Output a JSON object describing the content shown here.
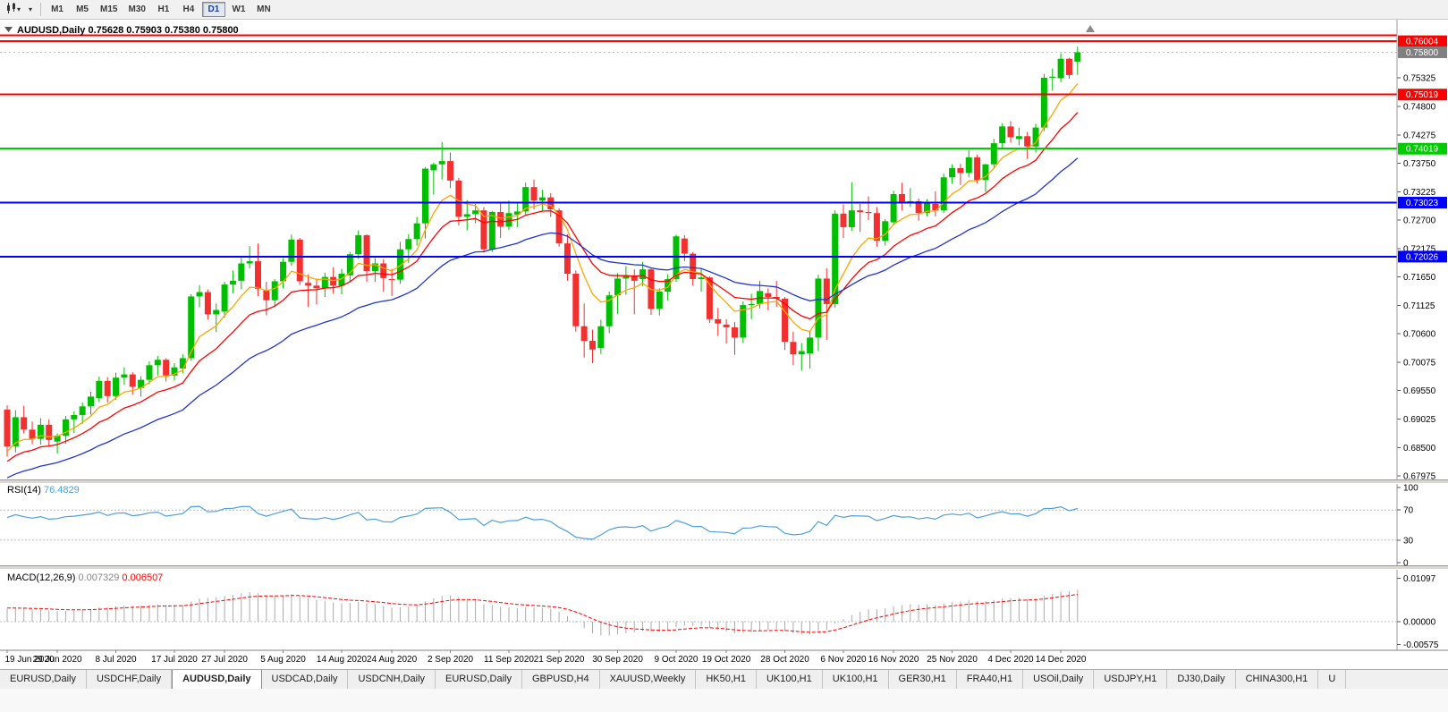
{
  "toolbar": {
    "timeframes": [
      "M1",
      "M5",
      "M15",
      "M30",
      "H1",
      "H4",
      "D1",
      "W1",
      "MN"
    ],
    "active_timeframe": "D1"
  },
  "chart": {
    "title": "AUDUSD,Daily",
    "ohlc_line": "0.75628 0.75903 0.75380 0.75800",
    "colors": {
      "bull": "#00BE00",
      "bear": "#F23030",
      "background": "#FFFFFF",
      "axis_text": "#000000"
    },
    "current_price": {
      "text": "0.75800",
      "value": 0.758,
      "badge_color": "#808080"
    }
  },
  "hlines": [
    {
      "name": "resistance-line-upper",
      "price": 0.7611,
      "color": "#FF0000",
      "width": 2,
      "badge": ""
    },
    {
      "name": "resistance-line-1",
      "price": 0.76004,
      "color": "#FF0000",
      "width": 2,
      "badge": "0.76004"
    },
    {
      "name": "resistance-line-2",
      "price": 0.75019,
      "color": "#FF0000",
      "width": 2,
      "badge": "0.75019"
    },
    {
      "name": "support-line-green",
      "price": 0.74019,
      "color": "#00CC00",
      "width": 2,
      "badge": "0.74019"
    },
    {
      "name": "support-line-blue-1",
      "price": 0.73023,
      "color": "#0000FF",
      "width": 2,
      "badge": "0.73023"
    },
    {
      "name": "support-line-blue-2",
      "price": 0.72026,
      "color": "#0000FF",
      "width": 2,
      "badge": "0.72026"
    }
  ],
  "price_scale": {
    "ticks": [
      "0.75325",
      "0.74800",
      "0.74275",
      "0.73750",
      "0.73225",
      "0.72700",
      "0.72175",
      "0.71650",
      "0.71125",
      "0.70600",
      "0.70075",
      "0.69550",
      "0.69025",
      "0.68500",
      "0.67975"
    ]
  },
  "indicators": {
    "moving_averages": [
      {
        "name": "ma-fast-orange",
        "color": "#FFA500"
      },
      {
        "name": "ma-medium-red",
        "color": "#FF0000"
      },
      {
        "name": "ma-slow-blue",
        "color": "#2233CC"
      }
    ],
    "rsi": {
      "label": "RSI(14)",
      "value": "76.4829",
      "color": "#4D9FDB",
      "scale_labels": [
        {
          "text": "100",
          "value": 100
        },
        {
          "text": "70",
          "value": 70
        },
        {
          "text": "30",
          "value": 30
        },
        {
          "text": "0",
          "value": 0
        }
      ],
      "dashed_levels": [
        70,
        30
      ]
    },
    "macd": {
      "label": "MACD(12,26,9)",
      "main_value": "0.007329",
      "signal_value": "0.006507",
      "bar_color": "#AAAAAA",
      "signal_color": "#FF0000",
      "scale_labels": [
        {
          "text": "0.01097",
          "value": 0.01097
        },
        {
          "text": "0.00000",
          "value": 0
        },
        {
          "text": "-0.00575",
          "value": -0.00575
        }
      ]
    }
  },
  "tabs": {
    "items": [
      "EURUSD,Daily",
      "USDCHF,Daily",
      "AUDUSD,Daily",
      "USDCAD,Daily",
      "USDCNH,Daily",
      "EURUSD,Daily",
      "GBPUSD,H4",
      "XAUUSD,Weekly",
      "HK50,H1",
      "UK100,H1",
      "UK100,H1",
      "GER30,H1",
      "FRA40,H1",
      "USOil,Daily",
      "USDJPY,H1",
      "DJ30,Daily",
      "CHINA300,H1",
      "U"
    ],
    "active_index": 2
  },
  "chart_data": {
    "type": "candlestick",
    "symbol": "AUDUSD",
    "timeframe": "Daily",
    "ylim": [
      0.6791,
      0.7627
    ],
    "x_labels": [
      [
        0,
        "19 Jun 2020"
      ],
      [
        6,
        "29 Jun 2020"
      ],
      [
        13,
        "8 Jul 2020"
      ],
      [
        20,
        "17 Jul 2020"
      ],
      [
        26,
        "27 Jul 2020"
      ],
      [
        33,
        "5 Aug 2020"
      ],
      [
        40,
        "14 Aug 2020"
      ],
      [
        46,
        "24 Aug 2020"
      ],
      [
        53,
        "2 Sep 2020"
      ],
      [
        60,
        "11 Sep 2020"
      ],
      [
        66,
        "21 Sep 2020"
      ],
      [
        73,
        "30 Sep 2020"
      ],
      [
        80,
        "9 Oct 2020"
      ],
      [
        86,
        "19 Oct 2020"
      ],
      [
        93,
        "28 Oct 2020"
      ],
      [
        100,
        "6 Nov 2020"
      ],
      [
        106,
        "16 Nov 2020"
      ],
      [
        113,
        "25 Nov 2020"
      ],
      [
        120,
        "4 Dec 2020"
      ],
      [
        126,
        "14 Dec 2020"
      ]
    ],
    "ohlc": [
      [
        0.692,
        0.6928,
        0.6833,
        0.6852
      ],
      [
        0.6852,
        0.6919,
        0.6841,
        0.6906
      ],
      [
        0.6906,
        0.6927,
        0.6876,
        0.6883
      ],
      [
        0.6883,
        0.6898,
        0.6856,
        0.6866
      ],
      [
        0.6866,
        0.6904,
        0.6855,
        0.6892
      ],
      [
        0.6892,
        0.6902,
        0.6853,
        0.6864
      ],
      [
        0.6861,
        0.6876,
        0.6839,
        0.6872
      ],
      [
        0.6872,
        0.6908,
        0.6857,
        0.6902
      ],
      [
        0.6902,
        0.6917,
        0.6877,
        0.691
      ],
      [
        0.691,
        0.6933,
        0.6894,
        0.6926
      ],
      [
        0.6926,
        0.6953,
        0.6911,
        0.6944
      ],
      [
        0.6941,
        0.6981,
        0.6934,
        0.6973
      ],
      [
        0.6973,
        0.698,
        0.6933,
        0.6945
      ],
      [
        0.6945,
        0.6988,
        0.6938,
        0.6979
      ],
      [
        0.6979,
        0.6998,
        0.6966,
        0.6985
      ],
      [
        0.6985,
        0.6989,
        0.6948,
        0.6962
      ],
      [
        0.696,
        0.6982,
        0.6944,
        0.6975
      ],
      [
        0.6975,
        0.7009,
        0.6967,
        0.7002
      ],
      [
        0.7002,
        0.7019,
        0.6983,
        0.7012
      ],
      [
        0.7012,
        0.7015,
        0.6972,
        0.6983
      ],
      [
        0.6983,
        0.7006,
        0.6974,
        0.6998
      ],
      [
        0.6996,
        0.7022,
        0.6987,
        0.7015
      ],
      [
        0.7015,
        0.7133,
        0.701,
        0.7129
      ],
      [
        0.7129,
        0.715,
        0.7109,
        0.7137
      ],
      [
        0.7137,
        0.7142,
        0.7086,
        0.7096
      ],
      [
        0.7096,
        0.7116,
        0.7063,
        0.7104
      ],
      [
        0.7101,
        0.7156,
        0.709,
        0.7151
      ],
      [
        0.7151,
        0.7177,
        0.7135,
        0.7158
      ],
      [
        0.7158,
        0.72,
        0.7142,
        0.719
      ],
      [
        0.719,
        0.7222,
        0.7181,
        0.7194
      ],
      [
        0.7194,
        0.7227,
        0.713,
        0.7143
      ],
      [
        0.714,
        0.7156,
        0.7094,
        0.7122
      ],
      [
        0.7122,
        0.7161,
        0.7109,
        0.7157
      ],
      [
        0.7157,
        0.72,
        0.7144,
        0.7193
      ],
      [
        0.7193,
        0.7243,
        0.7186,
        0.7234
      ],
      [
        0.7234,
        0.7237,
        0.715,
        0.7157
      ],
      [
        0.7154,
        0.717,
        0.711,
        0.7149
      ],
      [
        0.7149,
        0.7162,
        0.7114,
        0.7144
      ],
      [
        0.7144,
        0.7173,
        0.7128,
        0.7165
      ],
      [
        0.7165,
        0.7183,
        0.7134,
        0.7149
      ],
      [
        0.7149,
        0.718,
        0.7133,
        0.7171
      ],
      [
        0.7168,
        0.7211,
        0.7155,
        0.7207
      ],
      [
        0.7207,
        0.7251,
        0.7198,
        0.7242
      ],
      [
        0.7242,
        0.7244,
        0.7156,
        0.7176
      ],
      [
        0.7176,
        0.72,
        0.7156,
        0.719
      ],
      [
        0.719,
        0.7198,
        0.7138,
        0.7163
      ],
      [
        0.7161,
        0.718,
        0.713,
        0.716
      ],
      [
        0.716,
        0.723,
        0.7152,
        0.7216
      ],
      [
        0.7216,
        0.7244,
        0.7191,
        0.7235
      ],
      [
        0.7235,
        0.7276,
        0.7223,
        0.7264
      ],
      [
        0.7264,
        0.7368,
        0.7236,
        0.7365
      ],
      [
        0.7362,
        0.7376,
        0.7317,
        0.7373
      ],
      [
        0.7373,
        0.7414,
        0.7345,
        0.7379
      ],
      [
        0.7379,
        0.7395,
        0.7329,
        0.7343
      ],
      [
        0.7343,
        0.7348,
        0.726,
        0.7276
      ],
      [
        0.7276,
        0.7307,
        0.7251,
        0.7281
      ],
      [
        0.7281,
        0.73,
        0.7264,
        0.7288
      ],
      [
        0.7288,
        0.7294,
        0.721,
        0.7216
      ],
      [
        0.7216,
        0.7287,
        0.7211,
        0.7285
      ],
      [
        0.7285,
        0.7303,
        0.7237,
        0.7258
      ],
      [
        0.7258,
        0.7306,
        0.7252,
        0.7283
      ],
      [
        0.728,
        0.7301,
        0.7257,
        0.7286
      ],
      [
        0.7286,
        0.7339,
        0.7279,
        0.7331
      ],
      [
        0.7331,
        0.7345,
        0.729,
        0.7306
      ],
      [
        0.7306,
        0.7326,
        0.7286,
        0.7312
      ],
      [
        0.7312,
        0.732,
        0.7276,
        0.729
      ],
      [
        0.7288,
        0.7292,
        0.7221,
        0.7227
      ],
      [
        0.7227,
        0.7244,
        0.7158,
        0.7171
      ],
      [
        0.7171,
        0.7177,
        0.7064,
        0.7074
      ],
      [
        0.7074,
        0.7116,
        0.7016,
        0.7047
      ],
      [
        0.7047,
        0.7068,
        0.7006,
        0.7031
      ],
      [
        0.7034,
        0.7086,
        0.7023,
        0.7074
      ],
      [
        0.7074,
        0.7138,
        0.7061,
        0.7131
      ],
      [
        0.7131,
        0.7172,
        0.7097,
        0.7162
      ],
      [
        0.7162,
        0.7185,
        0.7132,
        0.7168
      ],
      [
        0.7168,
        0.7179,
        0.7096,
        0.7158
      ],
      [
        0.7161,
        0.7193,
        0.7148,
        0.7179
      ],
      [
        0.7179,
        0.7181,
        0.7095,
        0.7106
      ],
      [
        0.7106,
        0.7144,
        0.7094,
        0.7138
      ],
      [
        0.7138,
        0.717,
        0.7121,
        0.7161
      ],
      [
        0.7161,
        0.7243,
        0.7156,
        0.724
      ],
      [
        0.7236,
        0.7242,
        0.7194,
        0.7208
      ],
      [
        0.7208,
        0.7211,
        0.7149,
        0.7161
      ],
      [
        0.7161,
        0.718,
        0.7138,
        0.7164
      ],
      [
        0.7164,
        0.7166,
        0.708,
        0.7087
      ],
      [
        0.7087,
        0.7108,
        0.7056,
        0.7079
      ],
      [
        0.7077,
        0.7087,
        0.7042,
        0.7072
      ],
      [
        0.7072,
        0.7082,
        0.7021,
        0.7053
      ],
      [
        0.7053,
        0.712,
        0.7043,
        0.7113
      ],
      [
        0.7113,
        0.7134,
        0.7087,
        0.7115
      ],
      [
        0.7115,
        0.7158,
        0.7107,
        0.7139
      ],
      [
        0.7135,
        0.7144,
        0.7103,
        0.7128
      ],
      [
        0.7128,
        0.7158,
        0.711,
        0.7125
      ],
      [
        0.7125,
        0.7128,
        0.703,
        0.7045
      ],
      [
        0.7045,
        0.7064,
        0.7002,
        0.7022
      ],
      [
        0.7022,
        0.7043,
        0.6992,
        0.7028
      ],
      [
        0.7024,
        0.7064,
        0.6996,
        0.7053
      ],
      [
        0.7053,
        0.7169,
        0.7028,
        0.7162
      ],
      [
        0.7162,
        0.7181,
        0.7049,
        0.7115
      ],
      [
        0.7115,
        0.7288,
        0.7108,
        0.7282
      ],
      [
        0.7282,
        0.7299,
        0.7237,
        0.7257
      ],
      [
        0.7257,
        0.734,
        0.725,
        0.7288
      ],
      [
        0.7288,
        0.73,
        0.7248,
        0.7285
      ],
      [
        0.7285,
        0.7314,
        0.727,
        0.7283
      ],
      [
        0.7283,
        0.7294,
        0.7221,
        0.7232
      ],
      [
        0.7232,
        0.7272,
        0.7223,
        0.7268
      ],
      [
        0.7266,
        0.7324,
        0.726,
        0.7318
      ],
      [
        0.7318,
        0.7339,
        0.7288,
        0.7301
      ],
      [
        0.7301,
        0.7329,
        0.7294,
        0.7305
      ],
      [
        0.7305,
        0.731,
        0.7269,
        0.7283
      ],
      [
        0.7283,
        0.7309,
        0.7277,
        0.7303
      ],
      [
        0.73,
        0.7323,
        0.7277,
        0.7288
      ],
      [
        0.7288,
        0.7356,
        0.7283,
        0.7349
      ],
      [
        0.7349,
        0.7373,
        0.7337,
        0.7366
      ],
      [
        0.7366,
        0.7374,
        0.7335,
        0.7357
      ],
      [
        0.7357,
        0.7399,
        0.7349,
        0.7386
      ],
      [
        0.7386,
        0.7391,
        0.7338,
        0.7344
      ],
      [
        0.7344,
        0.7374,
        0.7322,
        0.7373
      ],
      [
        0.7373,
        0.742,
        0.7365,
        0.7412
      ],
      [
        0.7412,
        0.7449,
        0.7403,
        0.7443
      ],
      [
        0.7443,
        0.7453,
        0.7413,
        0.7423
      ],
      [
        0.742,
        0.7441,
        0.7408,
        0.7425
      ],
      [
        0.7425,
        0.7433,
        0.7383,
        0.7406
      ],
      [
        0.7406,
        0.7448,
        0.7395,
        0.7441
      ],
      [
        0.7441,
        0.754,
        0.7434,
        0.7533
      ],
      [
        0.7533,
        0.755,
        0.7509,
        0.7535
      ],
      [
        0.7532,
        0.7578,
        0.7525,
        0.7568
      ],
      [
        0.7568,
        0.757,
        0.7531,
        0.7538
      ],
      [
        0.75628,
        0.75903,
        0.7538,
        0.758
      ]
    ]
  }
}
